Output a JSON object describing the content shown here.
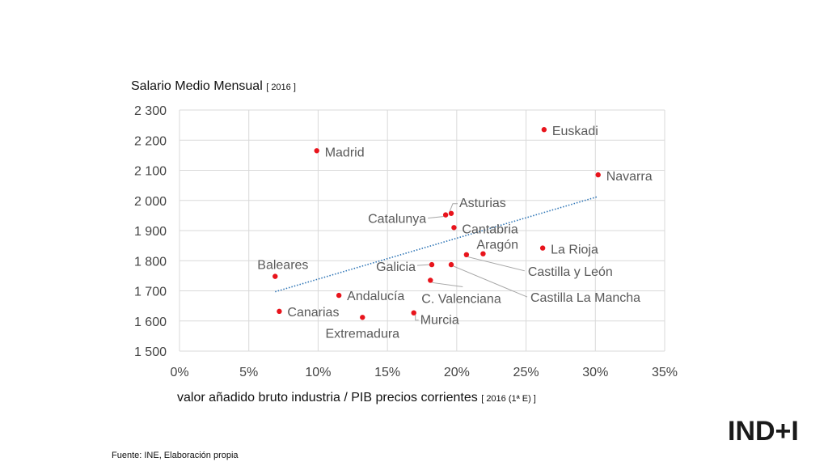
{
  "y_title_main": "Salario Medio Mensual",
  "y_title_suffix": "[ 2016 ]",
  "x_title_main": "valor añadido bruto industria / PIB precios corrientes",
  "x_title_suffix": "[ 2016 (1ª E) ]",
  "source": "Fuente: INE, Elaboración propia",
  "logo": "IND+I",
  "colors": {
    "point": "#e8141c",
    "trend": "#2e75b6",
    "grid": "#d9d9d9",
    "label": "#595959"
  },
  "chart_data": {
    "type": "scatter",
    "xlim": [
      0,
      35
    ],
    "ylim": [
      1500,
      2300
    ],
    "x_ticks": [
      0,
      5,
      10,
      15,
      20,
      25,
      30,
      35
    ],
    "x_tick_labels": [
      "0%",
      "5%",
      "10%",
      "15%",
      "20%",
      "25%",
      "30%",
      "35%"
    ],
    "y_ticks": [
      1500,
      1600,
      1700,
      1800,
      1900,
      2000,
      2100,
      2200,
      2300
    ],
    "y_tick_labels": [
      "1 500",
      "1 600",
      "1 700",
      "1 800",
      "1 900",
      "2 000",
      "2 100",
      "2 200",
      "2 300"
    ],
    "grid": true,
    "points": [
      {
        "label": "Euskadi",
        "x": 26.3,
        "y": 2235
      },
      {
        "label": "Madrid",
        "x": 9.9,
        "y": 2165
      },
      {
        "label": "Navarra",
        "x": 30.2,
        "y": 2085
      },
      {
        "label": "Asturias",
        "x": 19.6,
        "y": 1957
      },
      {
        "label": "Catalunya",
        "x": 19.2,
        "y": 1952
      },
      {
        "label": "Cantabria",
        "x": 19.8,
        "y": 1910
      },
      {
        "label": "Aragón",
        "x": 21.9,
        "y": 1823
      },
      {
        "label": "La Rioja",
        "x": 26.2,
        "y": 1842
      },
      {
        "label": "Castilla y León",
        "x": 20.7,
        "y": 1820
      },
      {
        "label": "Galicia",
        "x": 18.2,
        "y": 1787
      },
      {
        "label": "Castilla La Mancha",
        "x": 19.6,
        "y": 1787
      },
      {
        "label": "Baleares",
        "x": 6.9,
        "y": 1748
      },
      {
        "label": "C. Valenciana",
        "x": 18.1,
        "y": 1735
      },
      {
        "label": "Andalucía",
        "x": 11.5,
        "y": 1685
      },
      {
        "label": "Canarias",
        "x": 7.2,
        "y": 1632
      },
      {
        "label": "Murcia",
        "x": 16.9,
        "y": 1627
      },
      {
        "label": "Extremadura",
        "x": 13.2,
        "y": 1612
      }
    ],
    "trendline": {
      "x": [
        6.9,
        30.2
      ],
      "y": [
        1697,
        2013
      ],
      "style": "dotted"
    }
  }
}
